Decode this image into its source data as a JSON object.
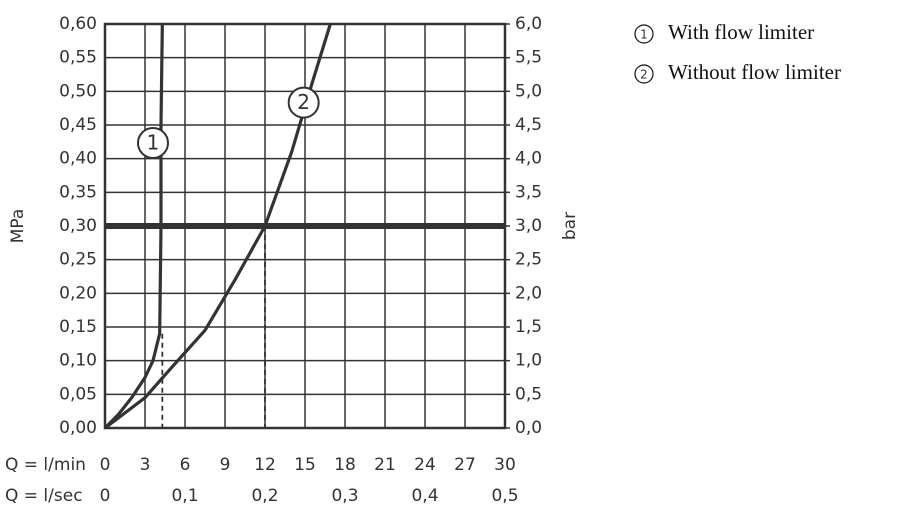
{
  "chart_data": {
    "type": "line",
    "x_label": "Q = l/min",
    "x2_label": "Q = l/sec",
    "y_label": "MPa",
    "y2_label": "bar",
    "xlim": [
      0,
      30
    ],
    "xticks": [
      0,
      3,
      6,
      9,
      12,
      15,
      18,
      21,
      24,
      27,
      30
    ],
    "x2lim": [
      0,
      0.5
    ],
    "x2ticks": [
      0,
      {
        "value": 0.1,
        "label": "0,1"
      },
      {
        "value": 0.2,
        "label": "0,2"
      },
      {
        "value": 0.3,
        "label": "0,3"
      },
      {
        "value": 0.4,
        "label": "0,4"
      },
      {
        "value": 0.5,
        "label": "0,5"
      }
    ],
    "ylim": [
      0,
      0.6
    ],
    "yticks": [
      {
        "value": 0,
        "label": "0,00"
      },
      {
        "value": 0.05,
        "label": "0,05"
      },
      {
        "value": 0.1,
        "label": "0,10"
      },
      {
        "value": 0.15,
        "label": "0,15"
      },
      {
        "value": 0.2,
        "label": "0,20"
      },
      {
        "value": 0.25,
        "label": "0,25"
      },
      {
        "value": 0.3,
        "label": "0,30"
      },
      {
        "value": 0.35,
        "label": "0,35"
      },
      {
        "value": 0.4,
        "label": "0,40"
      },
      {
        "value": 0.45,
        "label": "0,45"
      },
      {
        "value": 0.5,
        "label": "0,50"
      },
      {
        "value": 0.55,
        "label": "0,55"
      },
      {
        "value": 0.6,
        "label": "0,60"
      }
    ],
    "y2lim": [
      0,
      6
    ],
    "y2ticks": [
      {
        "value": 0,
        "label": "0,0"
      },
      {
        "value": 0.5,
        "label": "0,5"
      },
      {
        "value": 1,
        "label": "1,0"
      },
      {
        "value": 1.5,
        "label": "1,5"
      },
      {
        "value": 2,
        "label": "2,0"
      },
      {
        "value": 2.5,
        "label": "2,5"
      },
      {
        "value": 3,
        "label": "3,0"
      },
      {
        "value": 3.5,
        "label": "3,5"
      },
      {
        "value": 4,
        "label": "4,0"
      },
      {
        "value": 4.5,
        "label": "4,5"
      },
      {
        "value": 5,
        "label": "5,0"
      },
      {
        "value": 5.5,
        "label": "5,5"
      },
      {
        "value": 6,
        "label": "6,0"
      }
    ],
    "grid": true,
    "reference_line": 0.3,
    "droplines": [
      {
        "x": 4.3,
        "y": 0.14
      },
      {
        "x": 12,
        "y": 0.3
      }
    ],
    "series": [
      {
        "name": "With flow limiter",
        "label": "1",
        "color": "#333333",
        "x": [
          0,
          1,
          2,
          3,
          3.6,
          4.1,
          4.2,
          4.2,
          4.3
        ],
        "values": [
          0,
          0.02,
          0.045,
          0.075,
          0.1,
          0.14,
          0.3,
          0.45,
          0.6
        ]
      },
      {
        "name": "Without flow limiter",
        "label": "2",
        "color": "#333333",
        "x": [
          0,
          3,
          5,
          7.5,
          9.75,
          12,
          14,
          15.5,
          16.9
        ],
        "values": [
          0,
          0.045,
          0.09,
          0.145,
          0.22,
          0.3,
          0.41,
          0.51,
          0.6
        ]
      }
    ]
  }
}
